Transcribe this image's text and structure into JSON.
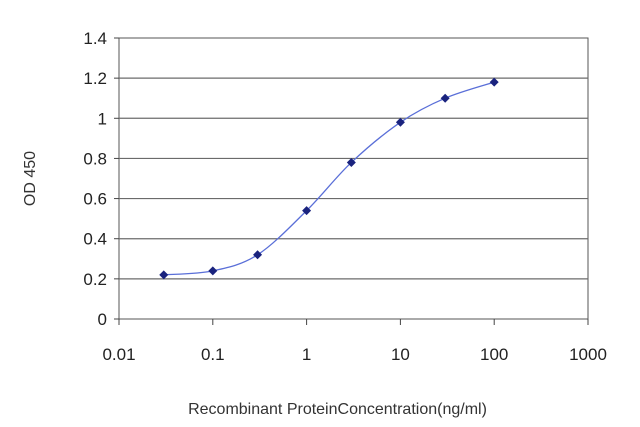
{
  "chart_data": {
    "type": "line",
    "title": "",
    "xlabel": "Recombinant ProteinConcentration(ng/ml)",
    "ylabel": "OD 450",
    "x_scale": "log",
    "xlim": [
      0.01,
      1000
    ],
    "ylim": [
      0,
      1.4
    ],
    "x_ticks": [
      "0.01",
      "0.1",
      "1",
      "10",
      "100",
      "1000"
    ],
    "y_ticks": [
      "0",
      "0.2",
      "0.4",
      "0.6",
      "0.8",
      "1",
      "1.2",
      "1.4"
    ],
    "grid": "horizontal",
    "legend": "none",
    "series": [
      {
        "x": [
          0.03,
          0.1,
          0.3,
          1,
          3,
          10,
          30,
          100
        ],
        "y": [
          0.22,
          0.24,
          0.32,
          0.54,
          0.78,
          0.98,
          1.1,
          1.18
        ],
        "line_color": "#5a6fd8",
        "marker_color": "#1a237e"
      }
    ]
  }
}
